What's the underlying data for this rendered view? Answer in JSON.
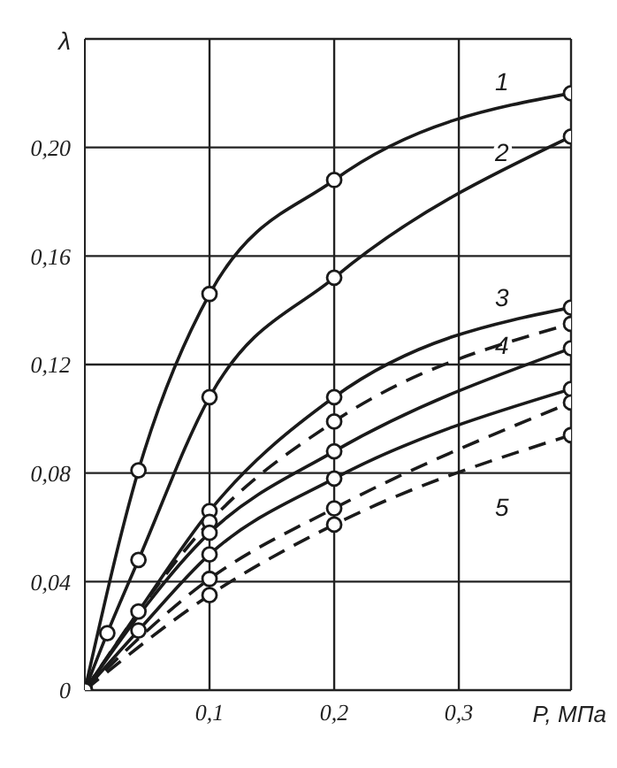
{
  "chart_data": {
    "type": "line",
    "xlabel": "P, МПа",
    "ylabel": "λ",
    "xlim": [
      0,
      0.39
    ],
    "ylim": [
      0,
      0.24
    ],
    "xticks": [
      {
        "value": 0.1,
        "label": "0,1"
      },
      {
        "value": 0.2,
        "label": "0,2"
      },
      {
        "value": 0.3,
        "label": "0,3"
      }
    ],
    "yticks": [
      {
        "value": 0,
        "label": "0"
      },
      {
        "value": 0.04,
        "label": "0,04"
      },
      {
        "value": 0.08,
        "label": "0,08"
      },
      {
        "value": 0.12,
        "label": "0,12"
      },
      {
        "value": 0.16,
        "label": "0,16"
      },
      {
        "value": 0.2,
        "label": "0,20"
      }
    ],
    "grid": true,
    "marker": "circle",
    "series": [
      {
        "name": "1",
        "color": "#1a1a1a",
        "line_style": "solid",
        "x": [
          0,
          0.043,
          0.1,
          0.2,
          0.39
        ],
        "values": [
          0,
          0.081,
          0.146,
          0.188,
          0.22
        ]
      },
      {
        "name": "2",
        "color": "#1a1a1a",
        "line_style": "solid",
        "x": [
          0,
          0.018,
          0.043,
          0.1,
          0.2,
          0.39
        ],
        "values": [
          0,
          0.021,
          0.048,
          0.108,
          0.152,
          0.204
        ]
      },
      {
        "name": "3",
        "color": "#1a1a1a",
        "line_style": "solid",
        "x": [
          0,
          0.043,
          0.1,
          0.2,
          0.39
        ],
        "values": [
          0,
          0.029,
          0.066,
          0.108,
          0.141
        ]
      },
      {
        "color": "#1a1a1a",
        "line_style": "dashed",
        "x": [
          0,
          0.1,
          0.2,
          0.39
        ],
        "values": [
          0,
          0.062,
          0.099,
          0.135
        ]
      },
      {
        "name": "4",
        "color": "#1a1a1a",
        "line_style": "solid",
        "x": [
          0,
          0.1,
          0.2,
          0.39
        ],
        "values": [
          0,
          0.058,
          0.088,
          0.126
        ]
      },
      {
        "color": "#1a1a1a",
        "line_style": "solid",
        "x": [
          0,
          0.043,
          0.1,
          0.2,
          0.39
        ],
        "values": [
          0,
          0.022,
          0.05,
          0.078,
          0.111
        ]
      },
      {
        "name": "5",
        "color": "#1a1a1a",
        "line_style": "dashed",
        "x": [
          0,
          0.1,
          0.2,
          0.39
        ],
        "values": [
          0,
          0.041,
          0.067,
          0.106
        ]
      },
      {
        "color": "#1a1a1a",
        "line_style": "dashed",
        "x": [
          0,
          0.1,
          0.2,
          0.39
        ],
        "values": [
          0,
          0.035,
          0.061,
          0.094
        ]
      }
    ]
  }
}
